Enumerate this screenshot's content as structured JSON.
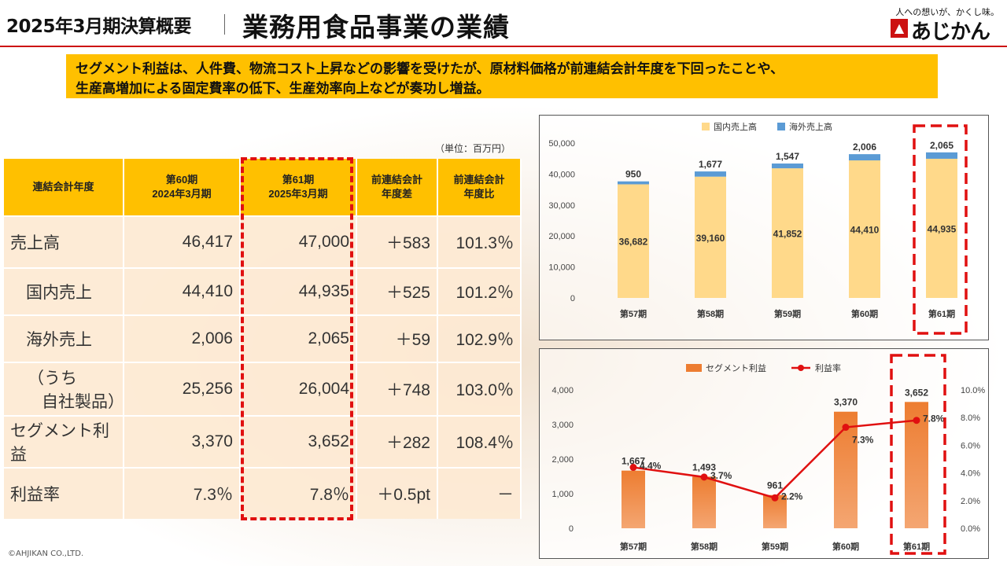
{
  "header": {
    "left_title": "2025年3月期決算概要",
    "title": "業務用食品事業の業績",
    "logo_tagline": "人への想いが、かくし味。",
    "logo_text": "あじかん",
    "accent": "#cc1111"
  },
  "callout": {
    "line1": "セグメント利益は、人件費、物流コスト上昇などの影響を受けたが、原材料価格が前連結会計年度を下回ったことや、",
    "line2": "生産高増加による固定費率の低下、生産効率向上などが奏功し増益。",
    "color": "#ffc000"
  },
  "table": {
    "unit": "（単位：百万円）",
    "headers": [
      [
        "連結会計年度"
      ],
      [
        "第60期",
        "2024年3月期"
      ],
      [
        "第61期",
        "2025年3月期"
      ],
      [
        "前連結会計",
        "年度差"
      ],
      [
        "前連結会計",
        "年度比"
      ]
    ],
    "rows": [
      {
        "label": [
          "売上高"
        ],
        "indent": false,
        "values": [
          "46,417",
          "47,000",
          "＋583",
          "101.3％"
        ]
      },
      {
        "label": [
          "国内売上"
        ],
        "indent": true,
        "values": [
          "44,410",
          "44,935",
          "＋525",
          "101.2％"
        ]
      },
      {
        "label": [
          "海外売上"
        ],
        "indent": true,
        "values": [
          "2,006",
          "2,065",
          "＋59",
          "102.9％"
        ]
      },
      {
        "label": [
          "（うち",
          "自社製品）"
        ],
        "indent": true,
        "values": [
          "25,256",
          "26,004",
          "＋748",
          "103.0％"
        ]
      },
      {
        "label": [
          "セグメント利益"
        ],
        "indent": false,
        "values": [
          "3,370",
          "3,652",
          "＋282",
          "108.4％"
        ]
      },
      {
        "label": [
          "利益率"
        ],
        "indent": false,
        "values": [
          "7.3％",
          "7.8％",
          "＋0.5pt",
          "－"
        ]
      }
    ]
  },
  "copyright": "©AHJIKAN CO.,LTD.",
  "chart_data": [
    {
      "type": "bar",
      "stacked": true,
      "categories": [
        "第57期",
        "第58期",
        "第59期",
        "第60期",
        "第61期"
      ],
      "series": [
        {
          "name": "国内売上高",
          "values": [
            36682,
            39160,
            41852,
            44410,
            44935
          ],
          "labels": [
            "36,682",
            "39,160",
            "41,852",
            "44,410",
            "44,935"
          ],
          "color": "#ffd98a"
        },
        {
          "name": "海外売上高",
          "values": [
            950,
            1677,
            1547,
            2006,
            2065
          ],
          "labels": [
            "950",
            "1,677",
            "1,547",
            "2,006",
            "2,065"
          ],
          "color": "#5b9bd5"
        }
      ],
      "yticks": [
        "0",
        "10,000",
        "20,000",
        "30,000",
        "40,000",
        "50,000"
      ],
      "ylim": [
        0,
        50000
      ],
      "legend": "top",
      "highlight": "第61期"
    },
    {
      "type": "bar+line",
      "categories": [
        "第57期",
        "第58期",
        "第59期",
        "第60期",
        "第61期"
      ],
      "series": [
        {
          "name": "セグメント利益",
          "values": [
            1667,
            1493,
            961,
            3370,
            3652
          ],
          "labels": [
            "1,667",
            "1,493",
            "961",
            "3,370",
            "3,652"
          ],
          "axis": "left",
          "color": "#ed7d31"
        },
        {
          "name": "利益率",
          "values": [
            4.4,
            3.7,
            2.2,
            7.3,
            7.8
          ],
          "labels": [
            "4.4%",
            "3.7%",
            "2.2%",
            "7.3%",
            "7.8%"
          ],
          "axis": "right",
          "color": "#e01010"
        }
      ],
      "yticks_left": [
        "0",
        "1,000",
        "2,000",
        "3,000",
        "4,000"
      ],
      "ylim_left": [
        0,
        4000
      ],
      "yticks_right": [
        "0.0%",
        "2.0%",
        "4.0%",
        "6.0%",
        "8.0%",
        "10.0%"
      ],
      "ylim_right": [
        0,
        10
      ],
      "legend": "top",
      "highlight": "第61期"
    }
  ]
}
